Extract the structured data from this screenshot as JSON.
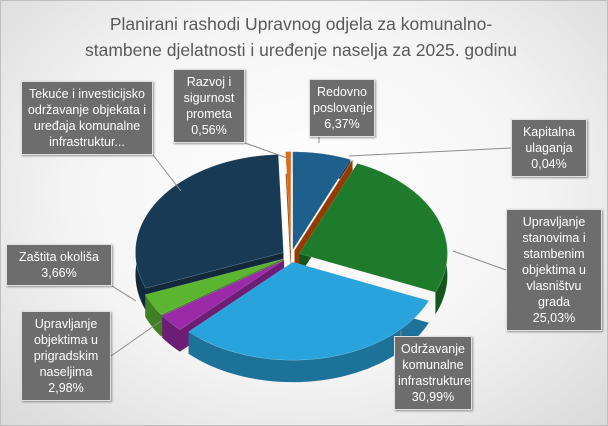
{
  "chart_data": {
    "type": "pie3d",
    "title": "Planirani rashodi Upravnog odjela za komunalno-stambene djelatnosti i uređenje naselja za 2025. godinu",
    "categories": [
      "Redovno poslovanje",
      "Kapitalna ulaganja",
      "Upravljanje stanovima i stambenim objektima u vlasništvu grada",
      "Održavanje komunalne infrastrukture",
      "Upravljanje objektima u prigradskim naseljima",
      "Zaštita okoliša",
      "Tekuće i investicijsko održavanje objekata i uređaja komunalne infrastruktur...",
      "Razvoj i sigurnost prometa"
    ],
    "values": [
      6.37,
      0.04,
      25.03,
      30.99,
      2.98,
      3.66,
      30.37,
      0.56
    ],
    "value_labels": [
      "6,37%",
      "0,04%",
      "25,03%",
      "30,99%",
      "2,98%",
      "3,66%",
      null,
      "0,56%"
    ],
    "colors": [
      "#1f5f8b",
      "#d35400",
      "#1e7b2c",
      "#29a3dc",
      "#9b2aa8",
      "#5bb531",
      "#193a54",
      "#e06a1b"
    ]
  }
}
